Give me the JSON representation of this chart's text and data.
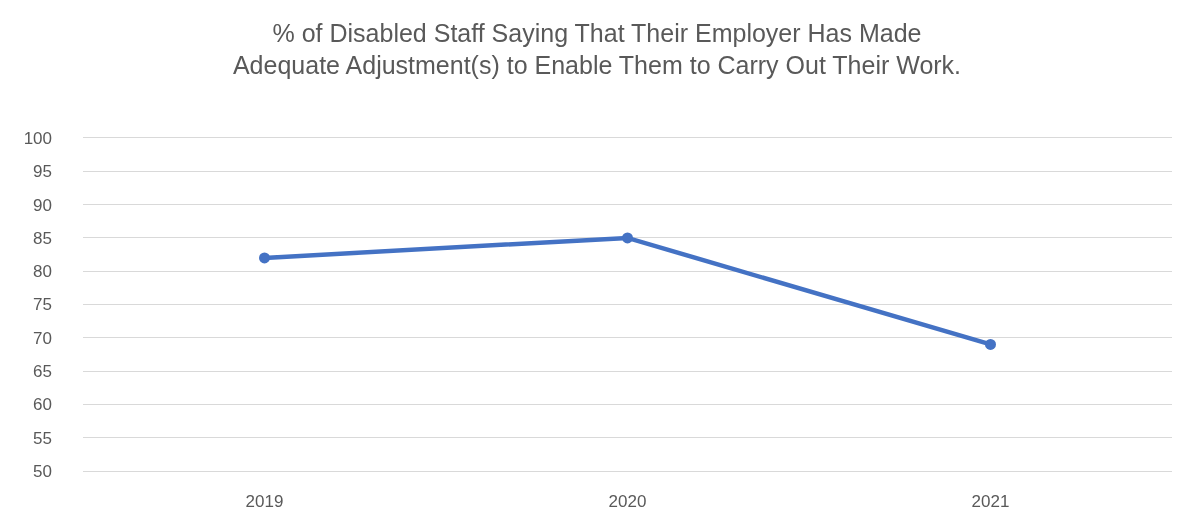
{
  "chart_data": {
    "type": "line",
    "title": "% of Disabled Staff Saying That Their Employer Has Made\nAdequate Adjustment(s) to Enable Them to Carry Out Their Work.",
    "categories": [
      "2019",
      "2020",
      "2021"
    ],
    "series": [
      {
        "color": "#4472c4",
        "values": [
          82,
          85,
          69
        ]
      }
    ],
    "ylim": [
      50,
      100
    ],
    "yticks": [
      50,
      55,
      60,
      65,
      70,
      75,
      80,
      85,
      90,
      95,
      100
    ],
    "grid": "y",
    "marker": "circle",
    "line_style": "solid"
  }
}
